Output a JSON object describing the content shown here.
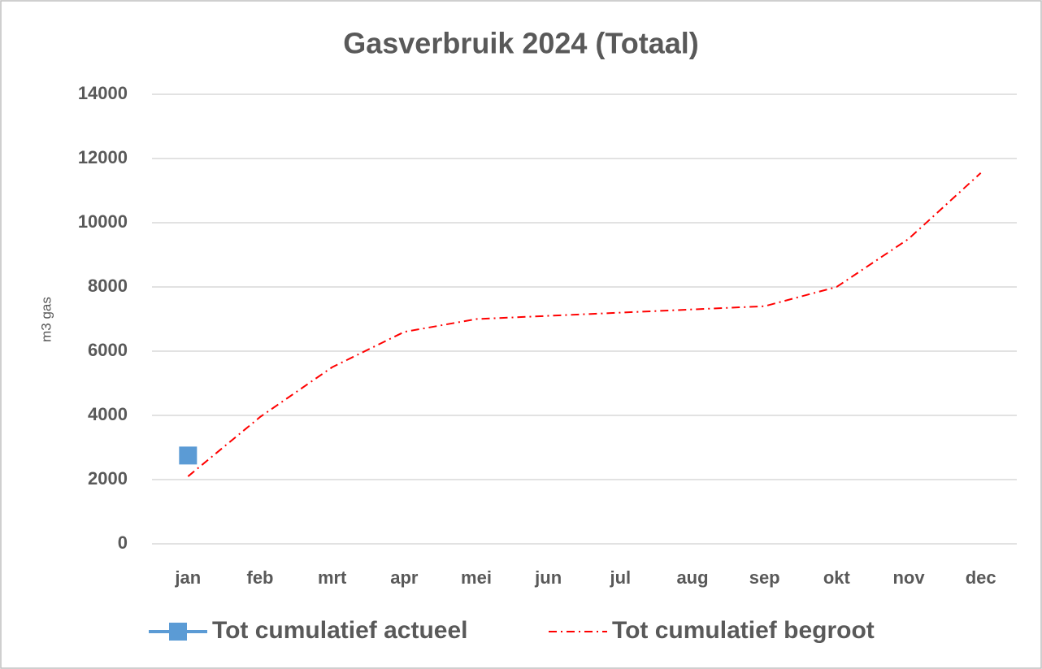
{
  "chart_data": {
    "type": "line",
    "title": "Gasverbruik 2024 (Totaal)",
    "y_label": "m3 gas",
    "categories": [
      "jan",
      "feb",
      "mrt",
      "apr",
      "mei",
      "jun",
      "jul",
      "aug",
      "sep",
      "okt",
      "nov",
      "dec"
    ],
    "series": [
      {
        "name": "Tot cumulatief actueel",
        "color": "#5b9bd5",
        "values": [
          2750,
          null,
          null,
          null,
          null,
          null,
          null,
          null,
          null,
          null,
          null,
          null
        ]
      },
      {
        "name": "Tot cumulatief begroot",
        "color": "#ff0000",
        "values": [
          2100,
          3950,
          5500,
          6600,
          7000,
          7100,
          7200,
          7300,
          7400,
          8000,
          9500,
          11550
        ]
      }
    ],
    "ylim": [
      0,
      14000
    ],
    "yticks": [
      0,
      2000,
      4000,
      6000,
      8000,
      10000,
      12000,
      14000
    ],
    "grid": true,
    "legend": "bottom"
  }
}
